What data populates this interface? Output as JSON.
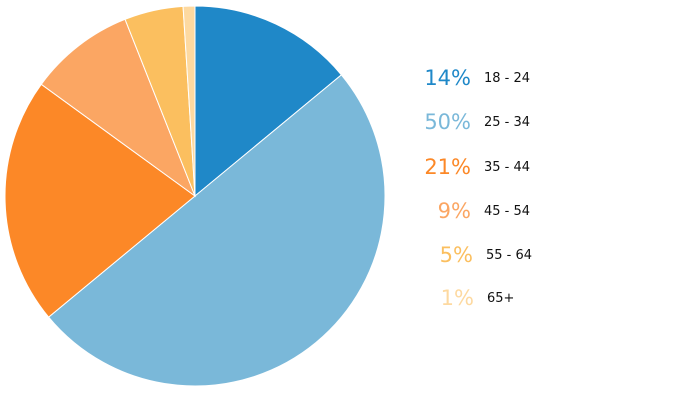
{
  "chart_data": {
    "type": "pie",
    "start_angle_deg": 0,
    "direction": "clockwise",
    "slices": [
      {
        "label": "18 - 24",
        "value": 14,
        "percent_label": "14%",
        "color": "#1f88c8"
      },
      {
        "label": "25 - 34",
        "value": 50,
        "percent_label": "50%",
        "color": "#7ab8d9"
      },
      {
        "label": "35 - 44",
        "value": 21,
        "percent_label": "21%",
        "color": "#fc8827"
      },
      {
        "label": "45 - 54",
        "value": 9,
        "percent_label": "9%",
        "color": "#fba663"
      },
      {
        "label": "55 - 64",
        "value": 5,
        "percent_label": "5%",
        "color": "#fbbf5f"
      },
      {
        "label": "65+",
        "value": 1,
        "percent_label": "1%",
        "color": "#fdd9a0"
      }
    ],
    "legend": "right"
  }
}
